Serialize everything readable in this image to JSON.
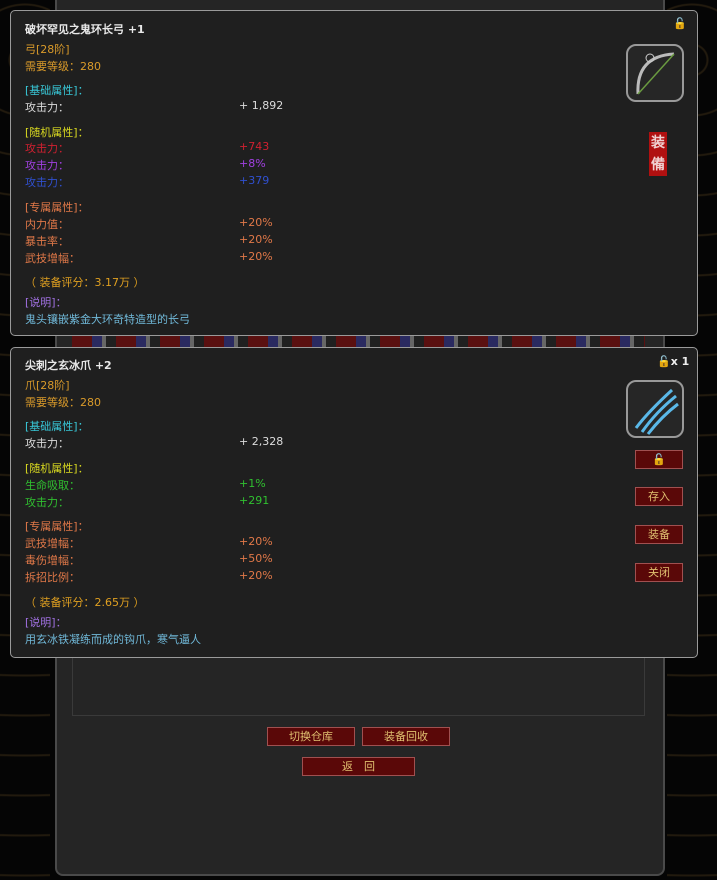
{
  "item1": {
    "name": "破坏罕见之鬼环长弓",
    "plus": "+1",
    "type": "弓[28阶]",
    "level": "需要等级：280",
    "base_header": "[基础属性]：",
    "base": [
      {
        "k": "攻击力：",
        "v": "+ 1,892"
      }
    ],
    "random_header": "[随机属性]：",
    "random": [
      {
        "k": "攻击力：",
        "v": "+743",
        "color": "#d02030"
      },
      {
        "k": "攻击力：",
        "v": "+8%",
        "color": "#a040e0"
      },
      {
        "k": "攻击力：",
        "v": "+379",
        "color": "#3050d0"
      }
    ],
    "exclusive_header": "[专属属性]：",
    "exclusive": [
      {
        "k": "内力值：",
        "v": "+20%"
      },
      {
        "k": "暴击率：",
        "v": "+20%"
      },
      {
        "k": "武技增幅：",
        "v": "+20%"
      }
    ],
    "score": "（ 装备评分：3.17万 ）",
    "desc_header": "[说明]：",
    "desc": "鬼头镶嵌紫金大环奇特造型的长弓",
    "equipped_seal": "装備",
    "lock_icon": "unlock-icon"
  },
  "item2": {
    "name": "尖刺之玄冰爪",
    "plus": "+2",
    "count": "x 1",
    "type": "爪[28阶]",
    "level": "需要等级：280",
    "base_header": "[基础属性]：",
    "base": [
      {
        "k": "攻击力：",
        "v": "+ 2,328"
      }
    ],
    "random_header": "[随机属性]：",
    "random": [
      {
        "k": "生命吸取：",
        "v": "+1%",
        "color": "#30c030"
      },
      {
        "k": "攻击力：",
        "v": "+291",
        "color": "#30c030"
      }
    ],
    "exclusive_header": "[专属属性]：",
    "exclusive": [
      {
        "k": "武技增幅：",
        "v": "+20%"
      },
      {
        "k": "毒伤增幅：",
        "v": "+50%"
      },
      {
        "k": "拆招比例：",
        "v": "+20%"
      }
    ],
    "score": "（ 装备评分：2.65万 ）",
    "desc_header": "[说明]：",
    "desc": "用玄冰铁凝练而成的钩爪，寒气逼人",
    "buttons": {
      "store": "存入",
      "equip": "装备",
      "close": "关闭"
    }
  },
  "footer": {
    "switch": "切换仓库",
    "recycle": "装备回收",
    "back": "返　回"
  }
}
